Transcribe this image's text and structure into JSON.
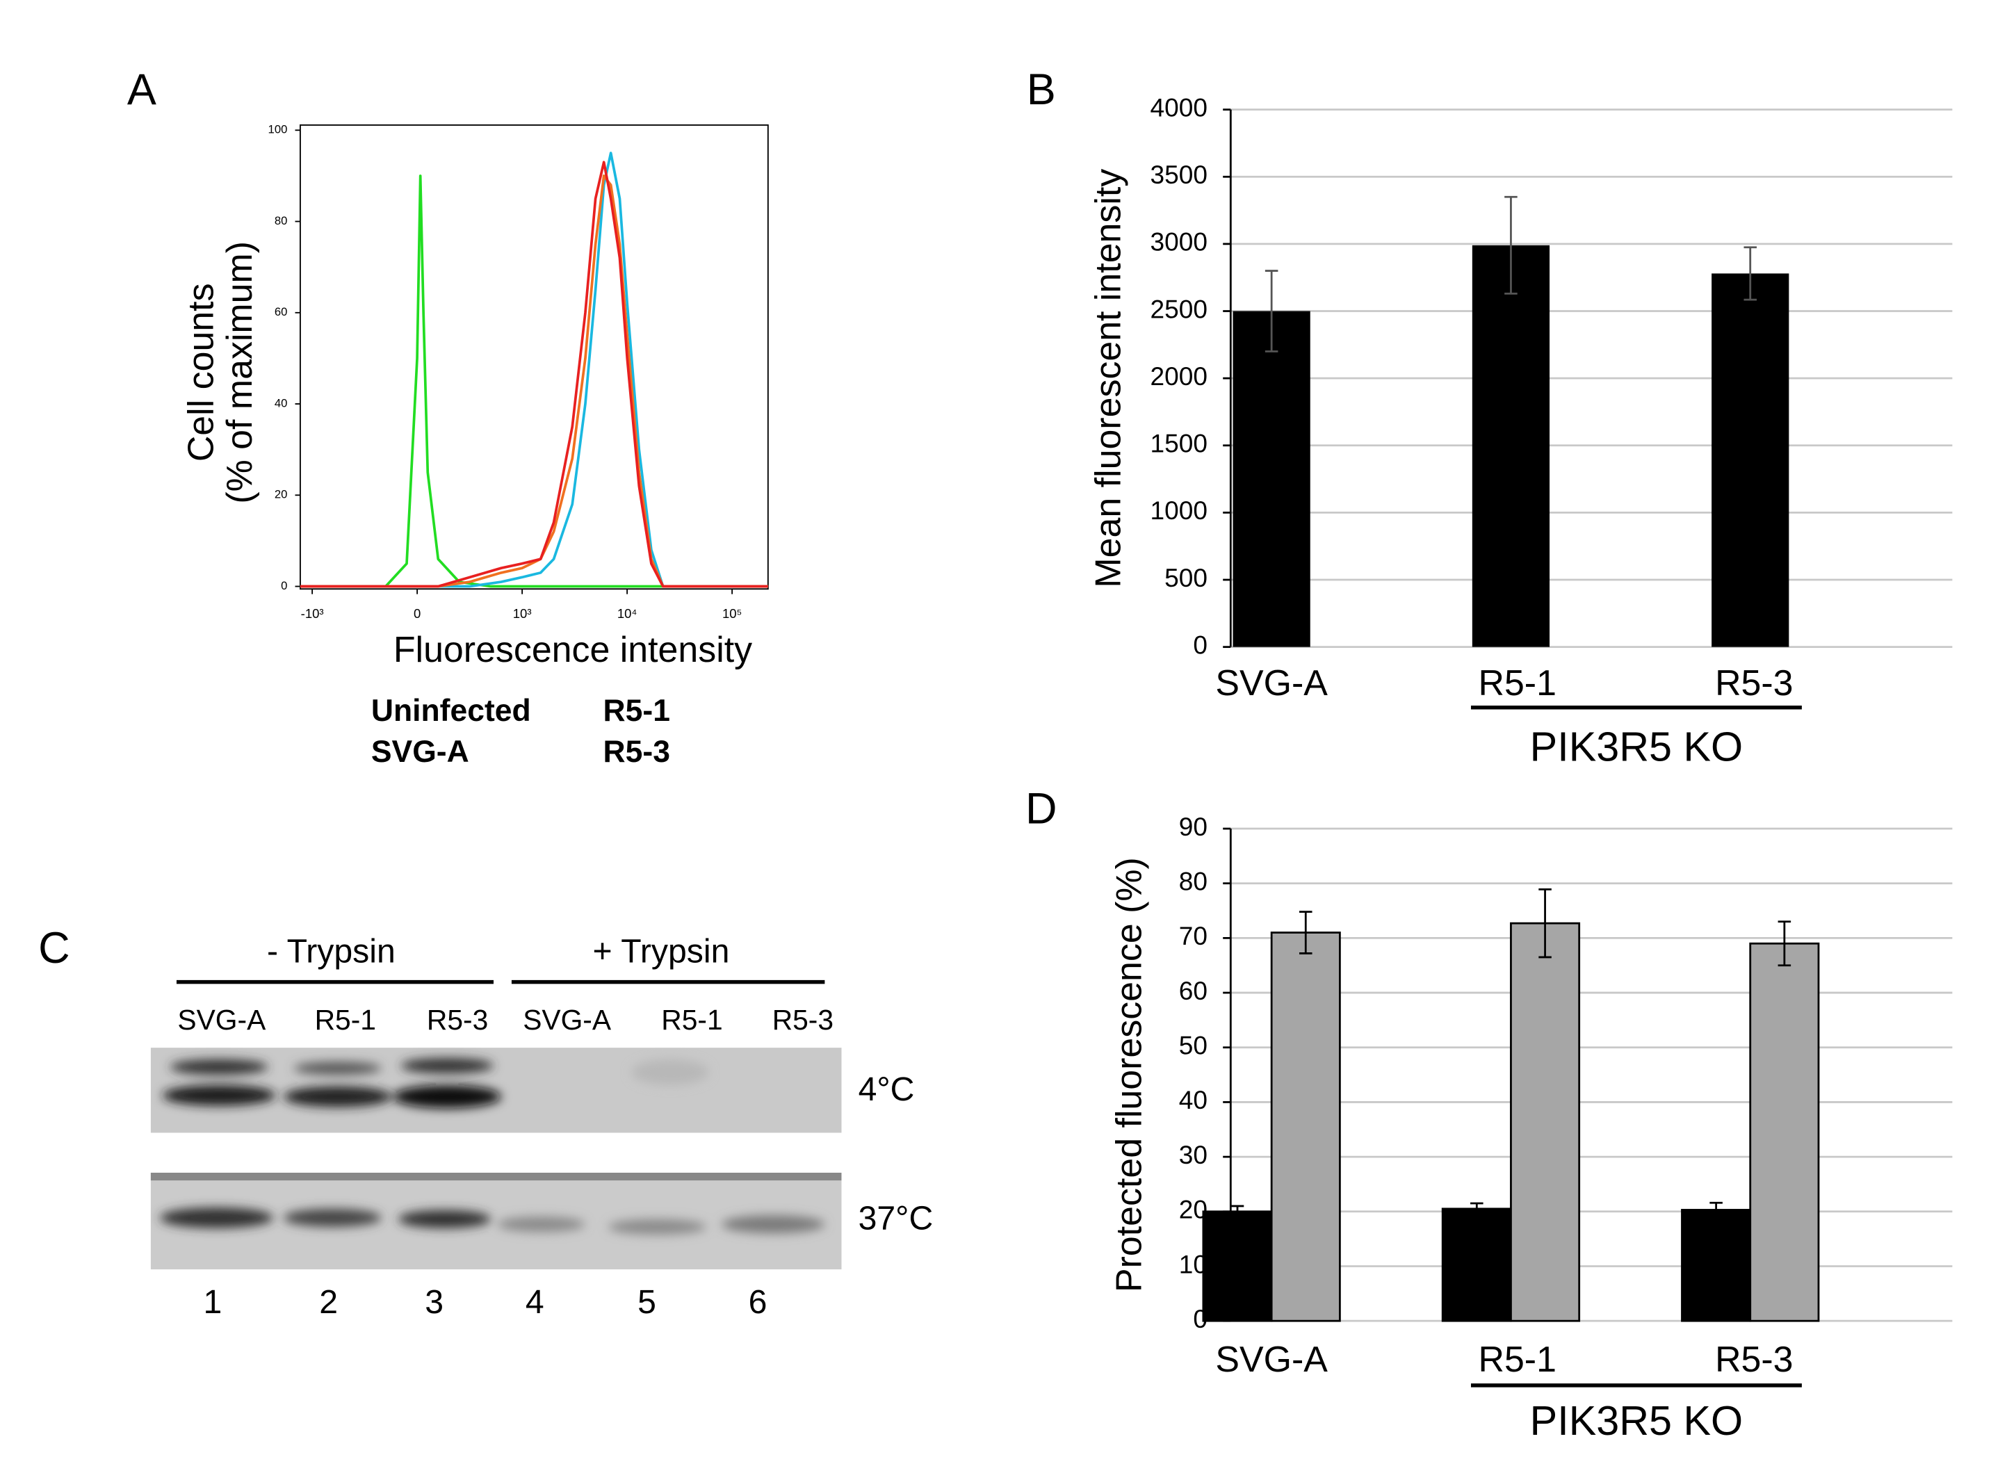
{
  "chart_data": [
    {
      "type": "line",
      "panel": "A",
      "ylabel": [
        "Cell counts",
        "(% of maximum)"
      ],
      "xlabel": "Fluorescence intensity",
      "xscale": "symlog",
      "xlim": [
        -1300,
        220000
      ],
      "xticks": [
        {
          "value": -1000,
          "label": "-10³"
        },
        0,
        {
          "value": 1000,
          "label": "10³"
        },
        {
          "value": 10000,
          "label": "10⁴"
        },
        {
          "value": 100000,
          "label": "10⁵"
        }
      ],
      "ylim": [
        0,
        100
      ],
      "yticks": [
        0,
        20,
        40,
        60,
        80,
        100
      ],
      "series": [
        {
          "name": "Uninfected",
          "color": "#22dd22",
          "x": [
            -1300,
            -300,
            -100,
            0,
            30,
            60,
            100,
            200,
            400,
            700,
            220000
          ],
          "values": [
            0,
            0,
            5,
            50,
            90,
            60,
            25,
            6,
            1,
            0,
            0
          ]
        },
        {
          "name": "R5-1",
          "color": "#1ab8e0",
          "x": [
            -1300,
            200,
            500,
            800,
            1000,
            1500,
            2000,
            3000,
            4000,
            5000,
            6000,
            7000,
            8500,
            10000,
            13000,
            17000,
            22000,
            220000
          ],
          "values": [
            0,
            0,
            0,
            1,
            2,
            3,
            6,
            18,
            40,
            65,
            88,
            95,
            85,
            62,
            30,
            8,
            0,
            0
          ]
        },
        {
          "name": "SVG-A",
          "color": "#f07020",
          "x": [
            -1300,
            200,
            500,
            800,
            1000,
            1500,
            2000,
            3000,
            4000,
            5000,
            6000,
            7000,
            8500,
            10000,
            13000,
            17000,
            22000,
            220000
          ],
          "values": [
            0,
            0,
            1,
            3,
            4,
            6,
            12,
            28,
            50,
            75,
            90,
            88,
            75,
            55,
            25,
            6,
            0,
            0
          ]
        },
        {
          "name": "R5-3",
          "color": "#e82020",
          "x": [
            -1300,
            200,
            500,
            800,
            1000,
            1500,
            2000,
            3000,
            4000,
            5000,
            6000,
            7000,
            8500,
            10000,
            13000,
            17000,
            22000,
            220000
          ],
          "values": [
            0,
            0,
            2,
            4,
            5,
            6,
            14,
            35,
            60,
            85,
            93,
            85,
            72,
            50,
            22,
            5,
            0,
            0
          ]
        }
      ]
    },
    {
      "type": "bar",
      "panel": "B",
      "ylabel": "Mean fluorescent intensity",
      "group_label": "PIK3R5 KO",
      "categories": [
        "SVG-A",
        "R5-1",
        "R5-3"
      ],
      "values": [
        2500,
        2990,
        2780
      ],
      "errors": [
        300,
        360,
        195
      ],
      "color": "#000000",
      "ylim": [
        0,
        4000
      ],
      "yticks": [
        0,
        500,
        1000,
        1500,
        2000,
        2500,
        3000,
        3500,
        4000
      ],
      "grid": true
    },
    {
      "type": "bar",
      "panel": "D",
      "ylabel": "Protected fluorescence (%)",
      "group_label": "PIK3R5 KO",
      "categories": [
        "SVG-A",
        "R5-1",
        "R5-3"
      ],
      "series": [
        {
          "color": "#000000",
          "values": [
            20,
            20.5,
            20.3
          ],
          "errors": [
            1,
            1,
            1.3
          ]
        },
        {
          "color": "#a6a6a6",
          "values": [
            71,
            72.7,
            69
          ],
          "errors": [
            3.8,
            6.2,
            4
          ]
        }
      ],
      "ylim": [
        0,
        90
      ],
      "yticks": [
        0,
        10,
        20,
        30,
        40,
        50,
        60,
        70,
        80,
        90
      ],
      "grid": true
    }
  ],
  "blot": {
    "panel": "C",
    "groups": [
      "- Trypsin",
      "+ Trypsin"
    ],
    "lanes": [
      "SVG-A",
      "R5-1",
      "R5-3",
      "SVG-A",
      "R5-1",
      "R5-3"
    ],
    "rows": [
      "4°C",
      "37°C"
    ],
    "lane_numbers": [
      "1",
      "2",
      "3",
      "4",
      "5",
      "6"
    ]
  }
}
